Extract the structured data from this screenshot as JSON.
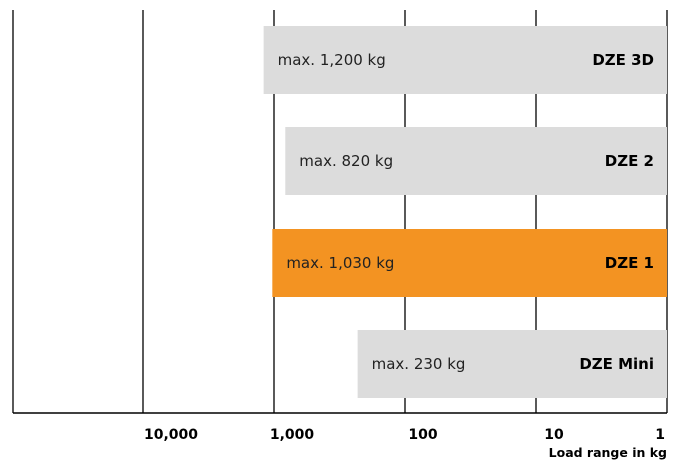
{
  "chart_data": {
    "type": "bar",
    "orientation": "horizontal",
    "x_scale": "log",
    "x_reversed": true,
    "x_ticks": [
      10000,
      1000,
      100,
      10,
      1
    ],
    "x_tick_labels": [
      "10,000",
      "1,000",
      "100",
      "10",
      "1"
    ],
    "xlabel": "Load range in kg",
    "grid": "vertical lines at ticks",
    "series": [
      {
        "name": "DZE 3D",
        "value": 1200,
        "label": "max. 1,200 kg",
        "color": "#dcdcdc"
      },
      {
        "name": "DZE 2",
        "value": 820,
        "label": "max. 820 kg",
        "color": "#dcdcdc"
      },
      {
        "name": "DZE 1",
        "value": 1030,
        "label": "max. 1,030 kg",
        "color": "#f39322"
      },
      {
        "name": "DZE Mini",
        "value": 230,
        "label": "max. 230 kg",
        "color": "#dcdcdc"
      }
    ]
  }
}
